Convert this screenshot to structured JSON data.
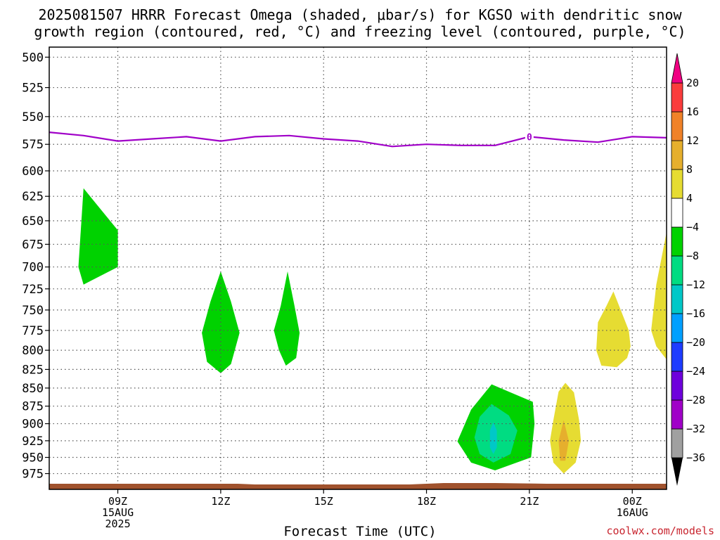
{
  "title_line1": "2025081507 HRRR Forecast Omega (shaded, μbar/s) for KGSO with dendritic snow",
  "title_line2": "growth region (contoured, red, °C) and freezing level (contoured, purple, °C)",
  "xaxis_label": "Forecast Time (UTC)",
  "credit": "coolwx.com/models",
  "chart_data": {
    "type": "area",
    "title": "2025081507 HRRR Forecast Omega (shaded, μbar/s) for KGSO with dendritic snow growth region (contoured, red, °C) and freezing level (contoured, purple, °C)",
    "xlabel": "Forecast Time (UTC)",
    "ylabel": "",
    "y_ticks": [
      500,
      525,
      550,
      575,
      600,
      625,
      650,
      675,
      700,
      725,
      750,
      775,
      800,
      825,
      850,
      875,
      900,
      925,
      950,
      975
    ],
    "ylim": [
      1000,
      492
    ],
    "xlim": [
      7,
      25
    ],
    "x_ticks": [
      {
        "x": 9,
        "label": [
          "09Z",
          "15AUG",
          "2025"
        ]
      },
      {
        "x": 12,
        "label": [
          "12Z"
        ]
      },
      {
        "x": 15,
        "label": [
          "15Z"
        ]
      },
      {
        "x": 18,
        "label": [
          "18Z"
        ]
      },
      {
        "x": 21,
        "label": [
          "21Z"
        ]
      },
      {
        "x": 24,
        "label": [
          "00Z",
          "16AUG"
        ]
      }
    ],
    "grid": true,
    "freezing_level": {
      "label": "0",
      "label_x": 21,
      "color": "#a000c8",
      "x": [
        7,
        8,
        9,
        10,
        11,
        12,
        13,
        14,
        15,
        16,
        17,
        18,
        19,
        20,
        21,
        22,
        23,
        24,
        25
      ],
      "p": [
        564,
        567,
        572,
        570,
        568,
        572,
        568,
        567,
        570,
        572,
        577,
        575,
        576,
        576,
        568,
        571,
        573,
        568,
        569
      ]
    },
    "colorbar": {
      "boundaries": [
        -36,
        -32,
        -28,
        -24,
        -20,
        -16,
        -12,
        -8,
        -4,
        4,
        8,
        12,
        16,
        20
      ],
      "labels": [
        "20",
        "16",
        "12",
        "8",
        "4",
        "−4",
        "−8",
        "−12",
        "−16",
        "−20",
        "−24",
        "−28",
        "−32",
        "−36"
      ],
      "colors": [
        "#a0a0a0",
        "#a000c8",
        "#6e00dc",
        "#1e3cff",
        "#00a0ff",
        "#00c8c8",
        "#00dc82",
        "#00d200",
        "#ffffff",
        "#e6dc32",
        "#e6af2d",
        "#f08228",
        "#fa3c3c"
      ],
      "under_color": "#000000",
      "over_color": "#f00082"
    },
    "omega_regions": [
      {
        "value": "-4 to -8",
        "color": "#00d200",
        "points": [
          [
            8.0,
            617
          ],
          [
            9.0,
            660
          ],
          [
            9.0,
            700
          ],
          [
            8.0,
            720
          ],
          [
            7.85,
            700
          ]
        ]
      },
      {
        "value": "-4 to -8",
        "color": "#00d200",
        "points": [
          [
            12.0,
            705
          ],
          [
            12.3,
            740
          ],
          [
            12.55,
            778
          ],
          [
            12.3,
            818
          ],
          [
            12.0,
            830
          ],
          [
            11.6,
            815
          ],
          [
            11.45,
            778
          ],
          [
            11.7,
            740
          ]
        ]
      },
      {
        "value": "-4 to -8",
        "color": "#00d200",
        "points": [
          [
            13.95,
            705
          ],
          [
            14.15,
            745
          ],
          [
            14.3,
            778
          ],
          [
            14.2,
            810
          ],
          [
            13.9,
            820
          ],
          [
            13.7,
            800
          ],
          [
            13.55,
            775
          ],
          [
            13.75,
            745
          ]
        ]
      },
      {
        "value": "-4 to -8",
        "color": "#00d200",
        "points": [
          [
            19.9,
            845
          ],
          [
            20.5,
            857
          ],
          [
            21.1,
            869
          ],
          [
            21.15,
            900
          ],
          [
            21.05,
            950
          ],
          [
            20.0,
            970
          ],
          [
            19.3,
            958
          ],
          [
            18.9,
            926
          ],
          [
            19.3,
            880
          ]
        ]
      },
      {
        "value": "-8 to -12",
        "color": "#00dc82",
        "points": [
          [
            19.9,
            872
          ],
          [
            20.4,
            888
          ],
          [
            20.65,
            910
          ],
          [
            20.45,
            945
          ],
          [
            19.95,
            958
          ],
          [
            19.55,
            945
          ],
          [
            19.4,
            920
          ],
          [
            19.55,
            890
          ]
        ]
      },
      {
        "value": "-12 to -16",
        "color": "#00c8c8",
        "points": [
          [
            19.95,
            898
          ],
          [
            20.05,
            910
          ],
          [
            20.05,
            935
          ],
          [
            19.95,
            945
          ],
          [
            19.85,
            935
          ],
          [
            19.85,
            910
          ]
        ]
      },
      {
        "value": "4 to 8",
        "color": "#e6dc32",
        "points": [
          [
            22.05,
            843
          ],
          [
            22.3,
            856
          ],
          [
            22.45,
            895
          ],
          [
            22.5,
            925
          ],
          [
            22.35,
            958
          ],
          [
            22.0,
            975
          ],
          [
            21.7,
            958
          ],
          [
            21.6,
            925
          ],
          [
            21.7,
            895
          ],
          [
            21.85,
            855
          ]
        ]
      },
      {
        "value": "8 to 12",
        "color": "#e6af2d",
        "points": [
          [
            22.0,
            895
          ],
          [
            22.15,
            925
          ],
          [
            22.05,
            955
          ],
          [
            21.9,
            955
          ],
          [
            21.85,
            925
          ]
        ]
      },
      {
        "value": "4 to 8",
        "color": "#e6dc32",
        "points": [
          [
            23.45,
            728
          ],
          [
            23.9,
            775
          ],
          [
            23.95,
            795
          ],
          [
            23.85,
            810
          ],
          [
            23.55,
            822
          ],
          [
            23.1,
            820
          ],
          [
            22.95,
            800
          ],
          [
            23.0,
            765
          ],
          [
            23.25,
            745
          ]
        ]
      },
      {
        "value": "4 to 8",
        "color": "#e6dc32",
        "points": [
          [
            25.0,
            662
          ],
          [
            25.0,
            812
          ],
          [
            24.7,
            795
          ],
          [
            24.55,
            775
          ],
          [
            24.7,
            720
          ]
        ]
      }
    ],
    "terrain": {
      "color": "#a0522d",
      "surface_pressure": 1000
    }
  }
}
